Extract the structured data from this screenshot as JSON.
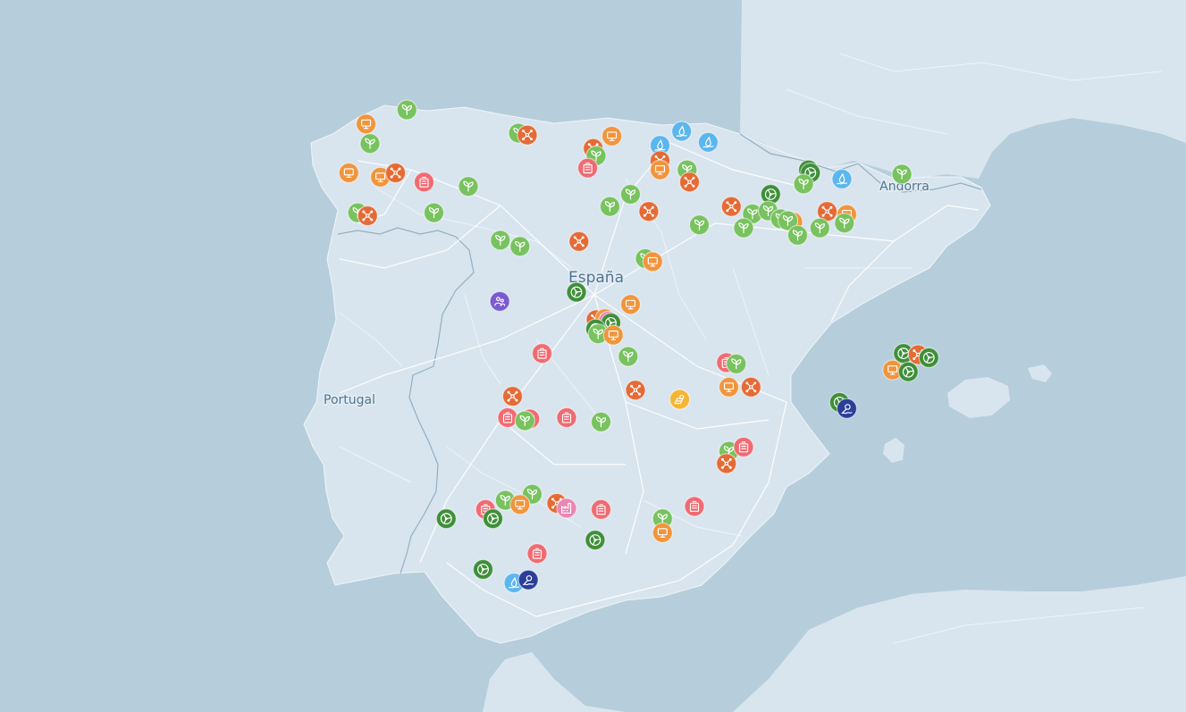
{
  "map": {
    "labels": {
      "spain": "España",
      "portugal": "Portugal",
      "andorra": "Andorra"
    },
    "categories": {
      "industry": {
        "color": "#f0953e",
        "icon": "monitor-icon"
      },
      "network": {
        "color": "#e56a35",
        "icon": "network-icon"
      },
      "agriculture": {
        "color": "#78c25f",
        "icon": "plant-icon"
      },
      "health": {
        "color": "#f06a72",
        "icon": "building-icon"
      },
      "wind": {
        "color": "#3f8f3a",
        "icon": "wind-turbine-icon"
      },
      "water": {
        "color": "#5bb6ee",
        "icon": "water-icon"
      },
      "marine": {
        "color": "#2b3f98",
        "icon": "marine-icon"
      },
      "people": {
        "color": "#7a5bd0",
        "icon": "people-icon"
      },
      "solar": {
        "color": "#f5b533",
        "icon": "solar-icon"
      },
      "pink": {
        "color": "#ea86b4",
        "icon": "factory-icon"
      }
    },
    "markers": [
      {
        "id": "m1",
        "cat": "industry",
        "lon": -8.38,
        "lat": 43.4
      },
      {
        "id": "m2",
        "cat": "agriculture",
        "lon": -7.55,
        "lat": 43.63
      },
      {
        "id": "m3",
        "cat": "agriculture",
        "lon": -8.3,
        "lat": 43.08
      },
      {
        "id": "m4",
        "cat": "industry",
        "lon": -8.73,
        "lat": 42.6
      },
      {
        "id": "m5",
        "cat": "industry",
        "lon": -8.09,
        "lat": 42.53
      },
      {
        "id": "m6",
        "cat": "network",
        "lon": -7.78,
        "lat": 42.6
      },
      {
        "id": "m7",
        "cat": "health",
        "lon": -7.2,
        "lat": 42.45
      },
      {
        "id": "m8",
        "cat": "agriculture",
        "lon": -6.3,
        "lat": 42.38
      },
      {
        "id": "m9",
        "cat": "agriculture",
        "lon": -8.55,
        "lat": 41.95
      },
      {
        "id": "m10",
        "cat": "network",
        "lon": -8.35,
        "lat": 41.9
      },
      {
        "id": "m11",
        "cat": "agriculture",
        "lon": -7.0,
        "lat": 41.95
      },
      {
        "id": "m12",
        "cat": "agriculture",
        "lon": -5.28,
        "lat": 43.25
      },
      {
        "id": "m13",
        "cat": "network",
        "lon": -5.1,
        "lat": 43.22
      },
      {
        "id": "m14",
        "cat": "industry",
        "lon": -3.38,
        "lat": 43.2
      },
      {
        "id": "m15",
        "cat": "network",
        "lon": -3.76,
        "lat": 43.0
      },
      {
        "id": "m16",
        "cat": "agriculture",
        "lon": -3.7,
        "lat": 42.88
      },
      {
        "id": "m17",
        "cat": "health",
        "lon": -3.87,
        "lat": 42.68
      },
      {
        "id": "m18",
        "cat": "water",
        "lon": -2.4,
        "lat": 43.05
      },
      {
        "id": "m19",
        "cat": "water",
        "lon": -1.96,
        "lat": 43.28
      },
      {
        "id": "m20",
        "cat": "water",
        "lon": -1.42,
        "lat": 43.1
      },
      {
        "id": "m21",
        "cat": "network",
        "lon": -2.4,
        "lat": 42.8
      },
      {
        "id": "m22",
        "cat": "industry",
        "lon": -2.4,
        "lat": 42.65
      },
      {
        "id": "m23",
        "cat": "agriculture",
        "lon": -1.85,
        "lat": 42.65
      },
      {
        "id": "m24",
        "cat": "network",
        "lon": -1.8,
        "lat": 42.45
      },
      {
        "id": "m25",
        "cat": "agriculture",
        "lon": -3.0,
        "lat": 42.25
      },
      {
        "id": "m26",
        "cat": "agriculture",
        "lon": -3.42,
        "lat": 42.05
      },
      {
        "id": "m27",
        "cat": "network",
        "lon": -2.63,
        "lat": 41.97
      },
      {
        "id": "m28",
        "cat": "agriculture",
        "lon": -1.6,
        "lat": 41.75
      },
      {
        "id": "m29",
        "cat": "agriculture",
        "lon": -5.65,
        "lat": 41.5
      },
      {
        "id": "m30",
        "cat": "agriculture",
        "lon": -5.25,
        "lat": 41.4
      },
      {
        "id": "m31",
        "cat": "network",
        "lon": -4.05,
        "lat": 41.48
      },
      {
        "id": "m32",
        "cat": "agriculture",
        "lon": -2.7,
        "lat": 41.2
      },
      {
        "id": "m33",
        "cat": "industry",
        "lon": -2.55,
        "lat": 41.15
      },
      {
        "id": "m34",
        "cat": "wind",
        "lon": -4.1,
        "lat": 40.65
      },
      {
        "id": "m35",
        "cat": "people",
        "lon": -5.66,
        "lat": 40.5
      },
      {
        "id": "m36",
        "cat": "industry",
        "lon": -3.0,
        "lat": 40.45
      },
      {
        "id": "m37",
        "cat": "network",
        "lon": -3.7,
        "lat": 40.2
      },
      {
        "id": "m38",
        "cat": "industry",
        "lon": -3.52,
        "lat": 40.22
      },
      {
        "id": "m39",
        "cat": "pink",
        "lon": -3.45,
        "lat": 40.18
      },
      {
        "id": "m40",
        "cat": "wind",
        "lon": -3.4,
        "lat": 40.15
      },
      {
        "id": "m41",
        "cat": "wind",
        "lon": -3.71,
        "lat": 40.05
      },
      {
        "id": "m42",
        "cat": "agriculture",
        "lon": -3.66,
        "lat": 39.97
      },
      {
        "id": "m43",
        "cat": "industry",
        "lon": -3.35,
        "lat": 39.95
      },
      {
        "id": "m44",
        "cat": "agriculture",
        "lon": -3.05,
        "lat": 39.6
      },
      {
        "id": "m45",
        "cat": "health",
        "lon": -4.8,
        "lat": 39.65
      },
      {
        "id": "m46",
        "cat": "network",
        "lon": -2.9,
        "lat": 39.05
      },
      {
        "id": "m47",
        "cat": "solar",
        "lon": -2.0,
        "lat": 38.9
      },
      {
        "id": "m48",
        "cat": "network",
        "lon": -5.4,
        "lat": 38.95
      },
      {
        "id": "m49",
        "cat": "health",
        "lon": -5.5,
        "lat": 38.6
      },
      {
        "id": "m50",
        "cat": "health",
        "lon": -5.05,
        "lat": 38.58
      },
      {
        "id": "m51",
        "cat": "agriculture",
        "lon": -5.15,
        "lat": 38.55
      },
      {
        "id": "m52",
        "cat": "health",
        "lon": -4.3,
        "lat": 38.6
      },
      {
        "id": "m53",
        "cat": "agriculture",
        "lon": -3.6,
        "lat": 38.53
      },
      {
        "id": "m54",
        "cat": "network",
        "lon": -0.95,
        "lat": 42.05
      },
      {
        "id": "m55",
        "cat": "wind",
        "lon": -0.15,
        "lat": 42.25
      },
      {
        "id": "m56",
        "cat": "wind",
        "lon": 0.62,
        "lat": 42.65
      },
      {
        "id": "m57",
        "cat": "wind",
        "lon": 0.66,
        "lat": 42.6
      },
      {
        "id": "m58",
        "cat": "agriculture",
        "lon": 0.52,
        "lat": 42.42
      },
      {
        "id": "m59",
        "cat": "water",
        "lon": 1.3,
        "lat": 42.5
      },
      {
        "id": "m60",
        "cat": "agriculture",
        "lon": 2.52,
        "lat": 42.58
      },
      {
        "id": "m61",
        "cat": "agriculture",
        "lon": -0.52,
        "lat": 41.93
      },
      {
        "id": "m62",
        "cat": "agriculture",
        "lon": -0.2,
        "lat": 41.98
      },
      {
        "id": "m63",
        "cat": "agriculture",
        "lon": 0.05,
        "lat": 41.85
      },
      {
        "id": "m64",
        "cat": "agriculture",
        "lon": -0.7,
        "lat": 41.7
      },
      {
        "id": "m65",
        "cat": "industry",
        "lon": 0.3,
        "lat": 41.8
      },
      {
        "id": "m66",
        "cat": "agriculture",
        "lon": 0.2,
        "lat": 41.82
      },
      {
        "id": "m67",
        "cat": "network",
        "lon": 1.0,
        "lat": 41.97
      },
      {
        "id": "m68",
        "cat": "industry",
        "lon": 1.4,
        "lat": 41.92
      },
      {
        "id": "m69",
        "cat": "agriculture",
        "lon": 1.35,
        "lat": 41.78
      },
      {
        "id": "m70",
        "cat": "agriculture",
        "lon": 0.85,
        "lat": 41.7
      },
      {
        "id": "m71",
        "cat": "agriculture",
        "lon": 0.4,
        "lat": 41.58
      },
      {
        "id": "m72",
        "cat": "health",
        "lon": -1.05,
        "lat": 39.5
      },
      {
        "id": "m73",
        "cat": "agriculture",
        "lon": -0.85,
        "lat": 39.48
      },
      {
        "id": "m74",
        "cat": "industry",
        "lon": -1.0,
        "lat": 39.1
      },
      {
        "id": "m75",
        "cat": "network",
        "lon": -0.55,
        "lat": 39.1
      },
      {
        "id": "m76",
        "cat": "agriculture",
        "lon": -1.0,
        "lat": 38.05
      },
      {
        "id": "m77",
        "cat": "health",
        "lon": -0.7,
        "lat": 38.12
      },
      {
        "id": "m78",
        "cat": "network",
        "lon": -1.05,
        "lat": 37.85
      },
      {
        "id": "m79",
        "cat": "wind",
        "lon": 2.55,
        "lat": 39.65
      },
      {
        "id": "m80",
        "cat": "network",
        "lon": 2.85,
        "lat": 39.63
      },
      {
        "id": "m81",
        "cat": "wind",
        "lon": 3.07,
        "lat": 39.58
      },
      {
        "id": "m82",
        "cat": "industry",
        "lon": 2.33,
        "lat": 39.38
      },
      {
        "id": "m83",
        "cat": "wind",
        "lon": 2.65,
        "lat": 39.35
      },
      {
        "id": "m84",
        "cat": "wind",
        "lon": 1.25,
        "lat": 38.85
      },
      {
        "id": "m85",
        "cat": "marine",
        "lon": 1.4,
        "lat": 38.75
      },
      {
        "id": "m86",
        "cat": "agriculture",
        "lon": -5.55,
        "lat": 37.25
      },
      {
        "id": "m87",
        "cat": "agriculture",
        "lon": -5.0,
        "lat": 37.35
      },
      {
        "id": "m88",
        "cat": "industry",
        "lon": -5.25,
        "lat": 37.18
      },
      {
        "id": "m89",
        "cat": "network",
        "lon": -4.5,
        "lat": 37.2
      },
      {
        "id": "m90",
        "cat": "pink",
        "lon": -4.3,
        "lat": 37.12
      },
      {
        "id": "m91",
        "cat": "health",
        "lon": -5.95,
        "lat": 37.1
      },
      {
        "id": "m92",
        "cat": "wind",
        "lon": -6.75,
        "lat": 36.95
      },
      {
        "id": "m93",
        "cat": "wind",
        "lon": -5.8,
        "lat": 36.95
      },
      {
        "id": "m94",
        "cat": "health",
        "lon": -3.6,
        "lat": 37.1
      },
      {
        "id": "m95",
        "cat": "health",
        "lon": -1.7,
        "lat": 37.15
      },
      {
        "id": "m96",
        "cat": "agriculture",
        "lon": -2.35,
        "lat": 36.95
      },
      {
        "id": "m97",
        "cat": "industry",
        "lon": -2.35,
        "lat": 36.72
      },
      {
        "id": "m98",
        "cat": "wind",
        "lon": -3.72,
        "lat": 36.6
      },
      {
        "id": "m99",
        "cat": "health",
        "lon": -4.9,
        "lat": 36.38
      },
      {
        "id": "m100",
        "cat": "wind",
        "lon": -6.0,
        "lat": 36.12
      },
      {
        "id": "m101",
        "cat": "water",
        "lon": -5.37,
        "lat": 35.9
      },
      {
        "id": "m102",
        "cat": "marine",
        "lon": -5.08,
        "lat": 35.95
      }
    ]
  }
}
